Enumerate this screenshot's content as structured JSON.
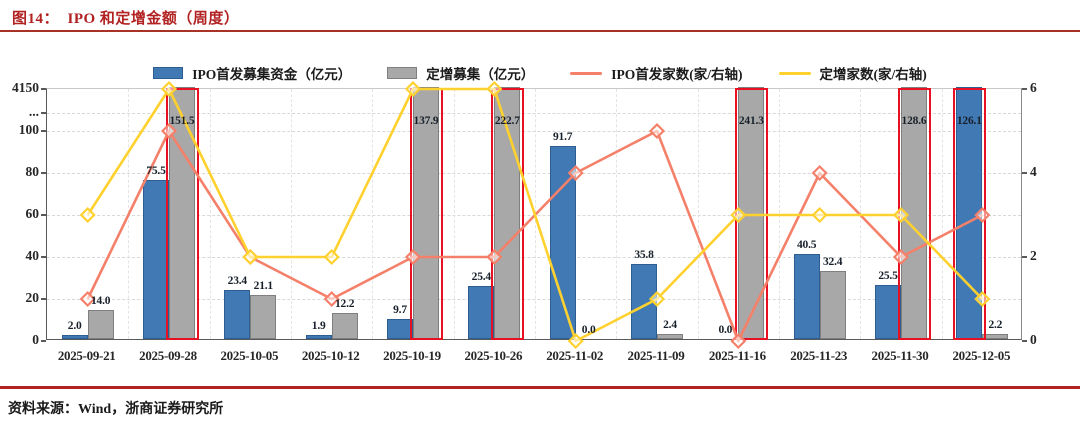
{
  "title": "图14：  IPO 和定增金额（周度）",
  "source": "资料来源：Wind，浙商证券研究所",
  "colors": {
    "accent_red": "#b22222",
    "highlight_box": "#e81123",
    "ipo_bar": "#4179b5",
    "ipo_bar_border": "#2d5e92",
    "dz_bar": "#a8a8a8",
    "dz_bar_border": "#7f7f7f",
    "ipo_line": "#f5806a",
    "dz_line": "#ffd12e",
    "axis_text": "#262626"
  },
  "legend": [
    {
      "label": "IPO首发募集资金（亿元）",
      "type": "bar",
      "color": "#4179b5",
      "border": "#2d5e92"
    },
    {
      "label": "定增募集（亿元）",
      "type": "bar",
      "color": "#a8a8a8",
      "border": "#7f7f7f"
    },
    {
      "label": "IPO首发家数(家/右轴)",
      "type": "line",
      "color": "#f5806a"
    },
    {
      "label": "定增家数(家/右轴)",
      "type": "line",
      "color": "#ffd12e"
    }
  ],
  "chart_data": {
    "type": "bar",
    "subtype": "combo dual-axis: grouped bars (left axis, 亿元) + lines with diamond markers (right axis, 家)",
    "categories": [
      "2025-09-21",
      "2025-09-28",
      "2025-10-05",
      "2025-10-12",
      "2025-10-19",
      "2025-10-26",
      "2025-11-02",
      "2025-11-09",
      "2025-11-16",
      "2025-11-23",
      "2025-11-30",
      "2025-12-05"
    ],
    "series": [
      {
        "name": "IPO首发募集资金（亿元）",
        "type": "bar",
        "axis": "left",
        "values": [
          2.0,
          75.5,
          23.4,
          1.9,
          9.7,
          25.4,
          91.7,
          35.8,
          0.0,
          40.5,
          25.5,
          126.1
        ]
      },
      {
        "name": "定增募集（亿元）",
        "type": "bar",
        "axis": "left",
        "values": [
          14.0,
          151.5,
          21.1,
          12.2,
          137.9,
          222.7,
          0.0,
          2.4,
          241.3,
          32.4,
          128.6,
          2.2
        ]
      },
      {
        "name": "IPO首发家数(家/右轴)",
        "type": "line",
        "axis": "right",
        "values": [
          1,
          5,
          2,
          1,
          2,
          2,
          4,
          5,
          0,
          4,
          2,
          3
        ]
      },
      {
        "name": "定增家数(家/右轴)",
        "type": "line",
        "axis": "right",
        "values": [
          3,
          6,
          2,
          2,
          6,
          6,
          0,
          1,
          3,
          3,
          3,
          1
        ]
      }
    ],
    "left_axis": {
      "ticks": [
        0,
        20,
        40,
        60,
        80,
        100
      ],
      "break_label": "...",
      "top_tick_label": "4150",
      "cap_value": 100,
      "note": "axis break above 100; bars exceeding 100 are drawn full height and outlined with a red highlight box"
    },
    "right_axis": {
      "ticks": [
        0,
        2,
        4,
        6
      ],
      "min": 0,
      "max": 6
    },
    "highlight_boxes": [
      "2025-09-28 定增募集 151.5",
      "2025-10-19 定增募集 137.9",
      "2025-10-26 定增募集 222.7",
      "2025-11-16 定增募集 241.3",
      "2025-11-30 定增募集 128.6",
      "2025-12-05 IPO首发募集资金 126.1"
    ],
    "grid": true,
    "legend_position": "top"
  }
}
